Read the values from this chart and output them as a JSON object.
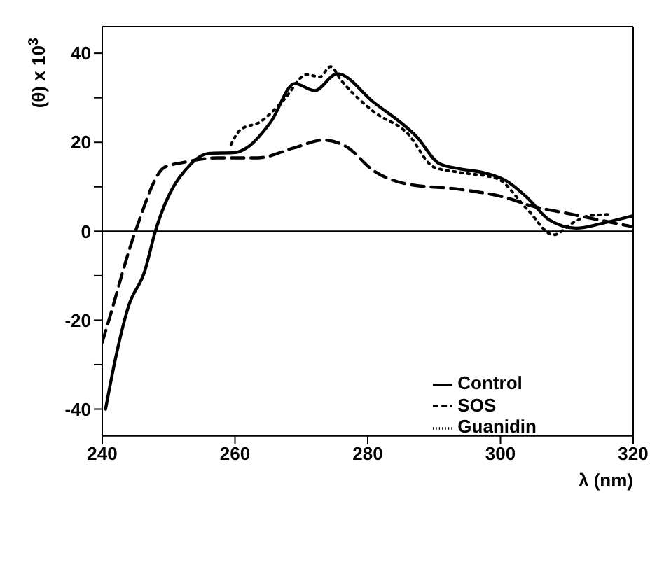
{
  "chart_data": {
    "type": "line",
    "xlabel": "λ (nm)",
    "ylabel": "(θ) x 10$^{3}$",
    "xlim": [
      240,
      320
    ],
    "xticks": [
      240,
      260,
      280,
      300,
      320
    ],
    "ylim": [
      -46,
      46
    ],
    "yticks": [
      -40,
      {
        "value": -30,
        "label": null
      },
      -20,
      {
        "value": -10,
        "label": null
      },
      0,
      {
        "value": 10,
        "label": null
      },
      20,
      {
        "value": 30,
        "label": null
      },
      40
    ],
    "legend": "bottom right",
    "marker": "none",
    "ref_lines": [
      {
        "axis": "y",
        "value": 0,
        "color": "#000000"
      }
    ],
    "series": [
      {
        "name": "Control",
        "color": "#000000",
        "line_style": "solid",
        "x": [
          240.5,
          241.8,
          244,
          246.4,
          248,
          253.4,
          256,
          260,
          262,
          265.4,
          269,
          272,
          275.4,
          280.8,
          287.4,
          290.8,
          294,
          297.4,
          300.8,
          304,
          307.4,
          311.4,
          315.4,
          320
        ],
        "values": [
          -40,
          -30,
          -16.7,
          -9,
          0,
          15.2,
          17.5,
          17.7,
          19,
          24.6,
          33.2,
          31.6,
          35.4,
          29.1,
          21.2,
          15.2,
          14,
          13.2,
          11.4,
          7.6,
          2.5,
          0.7,
          1.8,
          3.5
        ]
      },
      {
        "name": "SOS",
        "color": "#000000",
        "line_style": "dashed",
        "x": [
          240,
          241,
          245,
          249.4,
          252,
          257.4,
          263.4,
          268.8,
          273.4,
          276.8,
          280.8,
          286,
          294,
          301.4,
          304,
          310.8,
          320
        ],
        "values": [
          -25,
          -20,
          0,
          14.4,
          15.4,
          16.5,
          16.5,
          18.7,
          20.5,
          19,
          13.7,
          10.6,
          9.4,
          7.3,
          6,
          3.8,
          1
        ]
      },
      {
        "name": "Guanidin",
        "color": "#000000",
        "line_style": "dotted",
        "x": [
          259.4,
          260.8,
          263.8,
          267.4,
          270.8,
          272.8,
          274.4,
          276,
          280.8,
          286,
          290,
          294,
          299.4,
          304,
          308,
          310.8,
          313.4,
          316.8
        ],
        "values": [
          19.5,
          22.8,
          24.6,
          29.6,
          35.2,
          34.7,
          37,
          33.9,
          27,
          22,
          14.4,
          13.2,
          11.9,
          5,
          -0.8,
          1.8,
          3.5,
          3.8
        ]
      }
    ]
  }
}
